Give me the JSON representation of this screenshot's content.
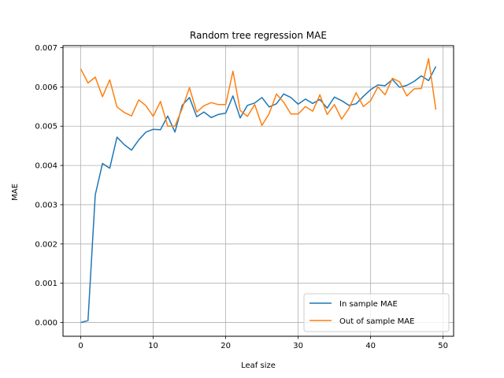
{
  "chart_data": {
    "type": "line",
    "title": "Random tree regression MAE",
    "xlabel": "Leaf size",
    "ylabel": "MAE",
    "xlim": [
      -2.45,
      51.45
    ],
    "ylim": [
      -0.00035,
      0.00705
    ],
    "xticks": [
      0,
      10,
      20,
      30,
      40,
      50
    ],
    "yticks": [
      "0.000",
      "0.001",
      "0.002",
      "0.003",
      "0.004",
      "0.005",
      "0.006",
      "0.007"
    ],
    "yticks_values": [
      0,
      0.001,
      0.002,
      0.003,
      0.004,
      0.005,
      0.006,
      0.007
    ],
    "grid": true,
    "legend_position": "lower-right",
    "x": [
      0,
      1,
      2,
      3,
      4,
      5,
      6,
      7,
      8,
      9,
      10,
      11,
      12,
      13,
      14,
      15,
      16,
      17,
      18,
      19,
      20,
      21,
      22,
      23,
      24,
      25,
      26,
      27,
      28,
      29,
      30,
      31,
      32,
      33,
      34,
      35,
      36,
      37,
      38,
      39,
      40,
      41,
      42,
      43,
      44,
      45,
      46,
      47,
      48,
      49
    ],
    "series": [
      {
        "name": "In sample MAE",
        "color": "#1f77b4",
        "values": [
          0.0,
          5e-05,
          0.00325,
          0.00405,
          0.00393,
          0.00472,
          0.00453,
          0.00439,
          0.00465,
          0.00485,
          0.00492,
          0.00491,
          0.00526,
          0.00485,
          0.00553,
          0.00573,
          0.00524,
          0.00536,
          0.00522,
          0.0053,
          0.00533,
          0.00577,
          0.00521,
          0.00553,
          0.00559,
          0.00573,
          0.00549,
          0.00557,
          0.00582,
          0.00573,
          0.00556,
          0.00569,
          0.00558,
          0.00568,
          0.00546,
          0.00574,
          0.00565,
          0.00553,
          0.00557,
          0.00576,
          0.00593,
          0.00605,
          0.00603,
          0.00619,
          0.00599,
          0.00604,
          0.00614,
          0.00628,
          0.00616,
          0.00652
        ]
      },
      {
        "name": "Out of sample MAE",
        "color": "#ff7f0e",
        "values": [
          0.00646,
          0.0061,
          0.00625,
          0.00575,
          0.00618,
          0.00549,
          0.00535,
          0.00526,
          0.00567,
          0.00552,
          0.00525,
          0.00563,
          0.005,
          0.005,
          0.00545,
          0.00598,
          0.00536,
          0.00552,
          0.0056,
          0.00555,
          0.00555,
          0.0064,
          0.0054,
          0.00525,
          0.00555,
          0.00502,
          0.00532,
          0.00582,
          0.00561,
          0.00531,
          0.00531,
          0.0055,
          0.00538,
          0.0058,
          0.0053,
          0.00555,
          0.00518,
          0.00545,
          0.00585,
          0.0055,
          0.00565,
          0.006,
          0.0058,
          0.00622,
          0.00613,
          0.00577,
          0.00595,
          0.00596,
          0.00672,
          0.00542
        ]
      }
    ]
  }
}
